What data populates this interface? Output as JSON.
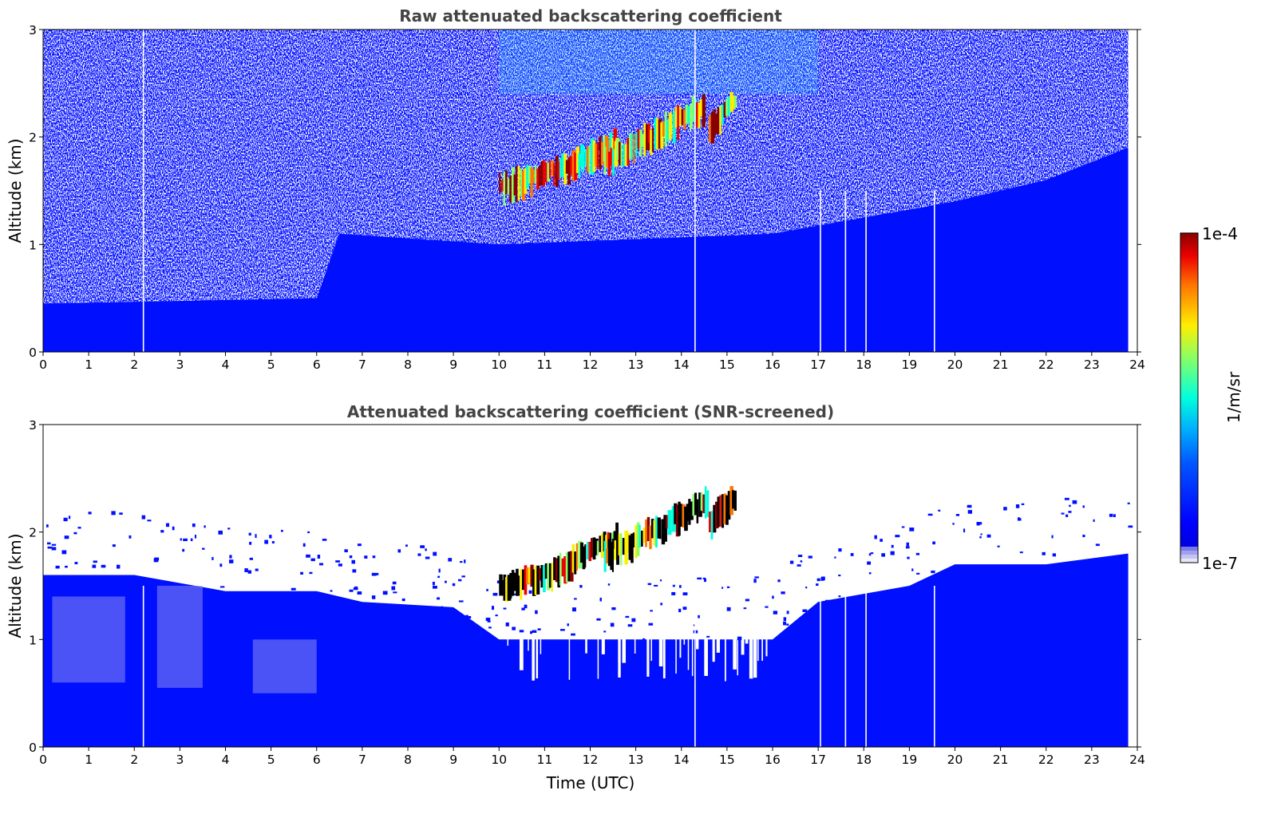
{
  "figure": {
    "xlabel": "Time (UTC)",
    "colorbar": {
      "label": "1/m/sr",
      "max_label": "1e-4",
      "min_label": "1e-7",
      "scale": "log",
      "colormap": "jet",
      "lowest_colors": [
        "#e6e6fa",
        "#c4c4f2",
        "#a0a0ee",
        "#7878ea"
      ]
    }
  },
  "chart_data": [
    {
      "type": "heatmap",
      "title": "Raw attenuated backscattering coefficient",
      "xlabel": "",
      "ylabel": "Altitude (km)",
      "xlim": [
        0,
        24
      ],
      "ylim": [
        0,
        3
      ],
      "x_ticks": [
        0,
        1,
        2,
        3,
        4,
        5,
        6,
        7,
        8,
        9,
        10,
        11,
        12,
        13,
        14,
        15,
        16,
        17,
        18,
        19,
        20,
        21,
        22,
        23,
        24
      ],
      "y_ticks": [
        0,
        1,
        2,
        3
      ],
      "data_end_hour": 23.8,
      "gap_hours": [
        2.2,
        14.3,
        17.05,
        17.6,
        18.05,
        19.55
      ],
      "boundary_layer_top_km": [
        [
          0,
          0.45
        ],
        [
          6,
          0.5
        ],
        [
          6.5,
          1.1
        ],
        [
          10,
          1.0
        ],
        [
          16,
          1.1
        ],
        [
          20,
          1.4
        ],
        [
          22,
          1.6
        ],
        [
          23.8,
          1.9
        ]
      ],
      "cloud_segments": [
        {
          "x_start": 10.0,
          "x_end": 11.6,
          "base_km": 1.45,
          "top_km": 1.75
        },
        {
          "x_start": 11.6,
          "x_end": 12.6,
          "base_km": 1.7,
          "top_km": 1.95
        },
        {
          "x_start": 12.3,
          "x_end": 14.5,
          "base_km": 1.55,
          "top_km": 2.3
        },
        {
          "x_start": 14.6,
          "x_end": 15.2,
          "base_km": 2.0,
          "top_km": 2.35
        }
      ]
    },
    {
      "type": "heatmap",
      "title": "Attenuated backscattering coefficient (SNR-screened)",
      "xlabel": "Time (UTC)",
      "ylabel": "Altitude (km)",
      "xlim": [
        0,
        24
      ],
      "ylim": [
        0,
        3
      ],
      "x_ticks": [
        0,
        1,
        2,
        3,
        4,
        5,
        6,
        7,
        8,
        9,
        10,
        11,
        12,
        13,
        14,
        15,
        16,
        17,
        18,
        19,
        20,
        21,
        22,
        23,
        24
      ],
      "y_ticks": [
        0,
        1,
        2,
        3
      ],
      "data_end_hour": 23.8,
      "gap_hours": [
        2.2,
        14.3,
        17.05,
        17.6,
        18.05,
        19.55
      ],
      "screened_top_km": [
        [
          0,
          1.6
        ],
        [
          2,
          1.6
        ],
        [
          4,
          1.45
        ],
        [
          6,
          1.45
        ],
        [
          7,
          1.35
        ],
        [
          9,
          1.3
        ],
        [
          10,
          1.0
        ],
        [
          16,
          1.0
        ],
        [
          17,
          1.35
        ],
        [
          19,
          1.5
        ],
        [
          20,
          1.7
        ],
        [
          22,
          1.7
        ],
        [
          23.8,
          1.8
        ]
      ],
      "cloud_segments": [
        {
          "x_start": 10.0,
          "x_end": 11.6,
          "base_km": 1.4,
          "top_km": 1.7
        },
        {
          "x_start": 11.6,
          "x_end": 12.6,
          "base_km": 1.65,
          "top_km": 1.95
        },
        {
          "x_start": 12.3,
          "x_end": 14.6,
          "base_km": 1.55,
          "top_km": 2.3
        },
        {
          "x_start": 14.6,
          "x_end": 15.2,
          "base_km": 2.0,
          "top_km": 2.35
        }
      ]
    }
  ]
}
